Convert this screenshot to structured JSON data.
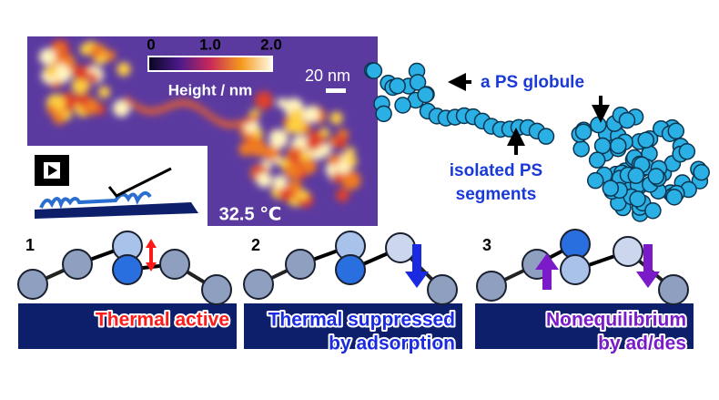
{
  "afm_image": {
    "colorbar_ticks": [
      "0",
      "1.0",
      "2.0"
    ],
    "colorbar_label": "Height / nm",
    "scale_bar": "20 nm",
    "temperature": "32.5 ℃"
  },
  "chain_labels": {
    "globule": "a PS globule",
    "segments": [
      "isolated PS",
      "segments"
    ]
  },
  "panels": [
    {
      "number": "1",
      "caption": [
        "Thermal active"
      ]
    },
    {
      "number": "2",
      "caption": [
        "Thermal suppressed",
        "by adsorption"
      ]
    },
    {
      "number": "3",
      "caption": [
        "Nonequilibrium",
        "by ad/des"
      ]
    }
  ]
}
